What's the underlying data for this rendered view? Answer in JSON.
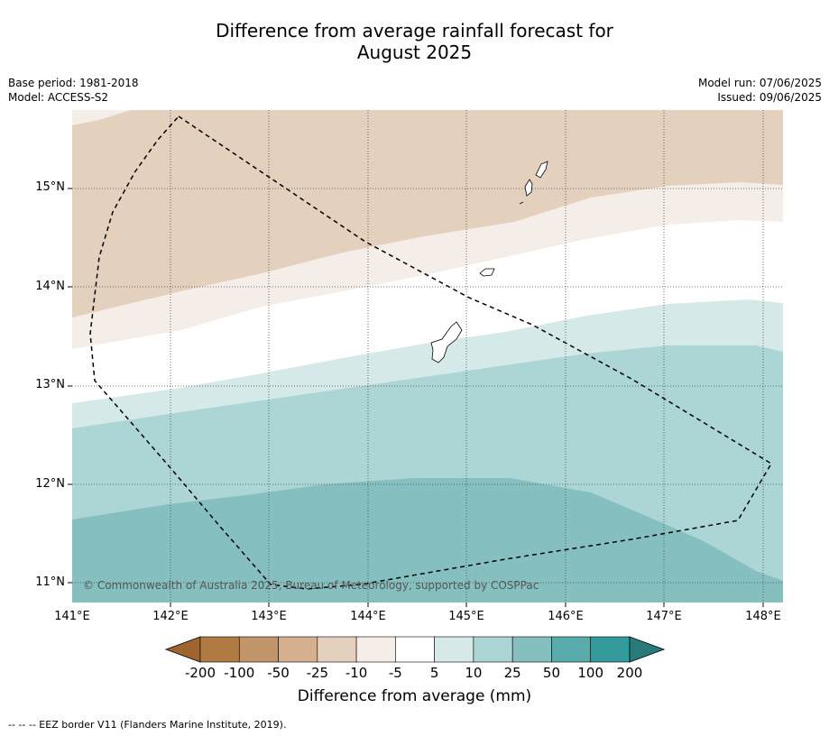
{
  "title_line1": "Difference from average rainfall forecast for",
  "title_line2": "August 2025",
  "meta_left": {
    "base_period": "Base period: 1981-2018",
    "model": "Model: ACCESS-S2"
  },
  "meta_right": {
    "model_run": "Model run: 07/06/2025",
    "issued": "Issued: 09/06/2025"
  },
  "lat_labels": [
    "15°N",
    "14°N",
    "13°N",
    "12°N",
    "11°N"
  ],
  "lon_labels": [
    "141°E",
    "142°E",
    "143°E",
    "144°E",
    "145°E",
    "146°E",
    "147°E",
    "148°E"
  ],
  "copyright": "© Commonwealth of Australia 2025, Bureau of Meteorology, supported by COSPPac",
  "colorbar": {
    "labels": [
      "-200",
      "-100",
      "-50",
      "-25",
      "-10",
      "-5",
      "5",
      "10",
      "25",
      "50",
      "100",
      "200"
    ],
    "colors": [
      "#a0652f",
      "#b07a42",
      "#c19469",
      "#d4b08f",
      "#e3d0bd",
      "#f5ede7",
      "#ffffff",
      "#d6e9e9",
      "#acd5d5",
      "#86bfbf",
      "#5aacac",
      "#339b9b",
      "#2a7a7a"
    ],
    "title": "Difference from average (mm)"
  },
  "eez_note": "--  --  -- EEZ border V11 (Flanders Marine Institute, 2019)."
}
